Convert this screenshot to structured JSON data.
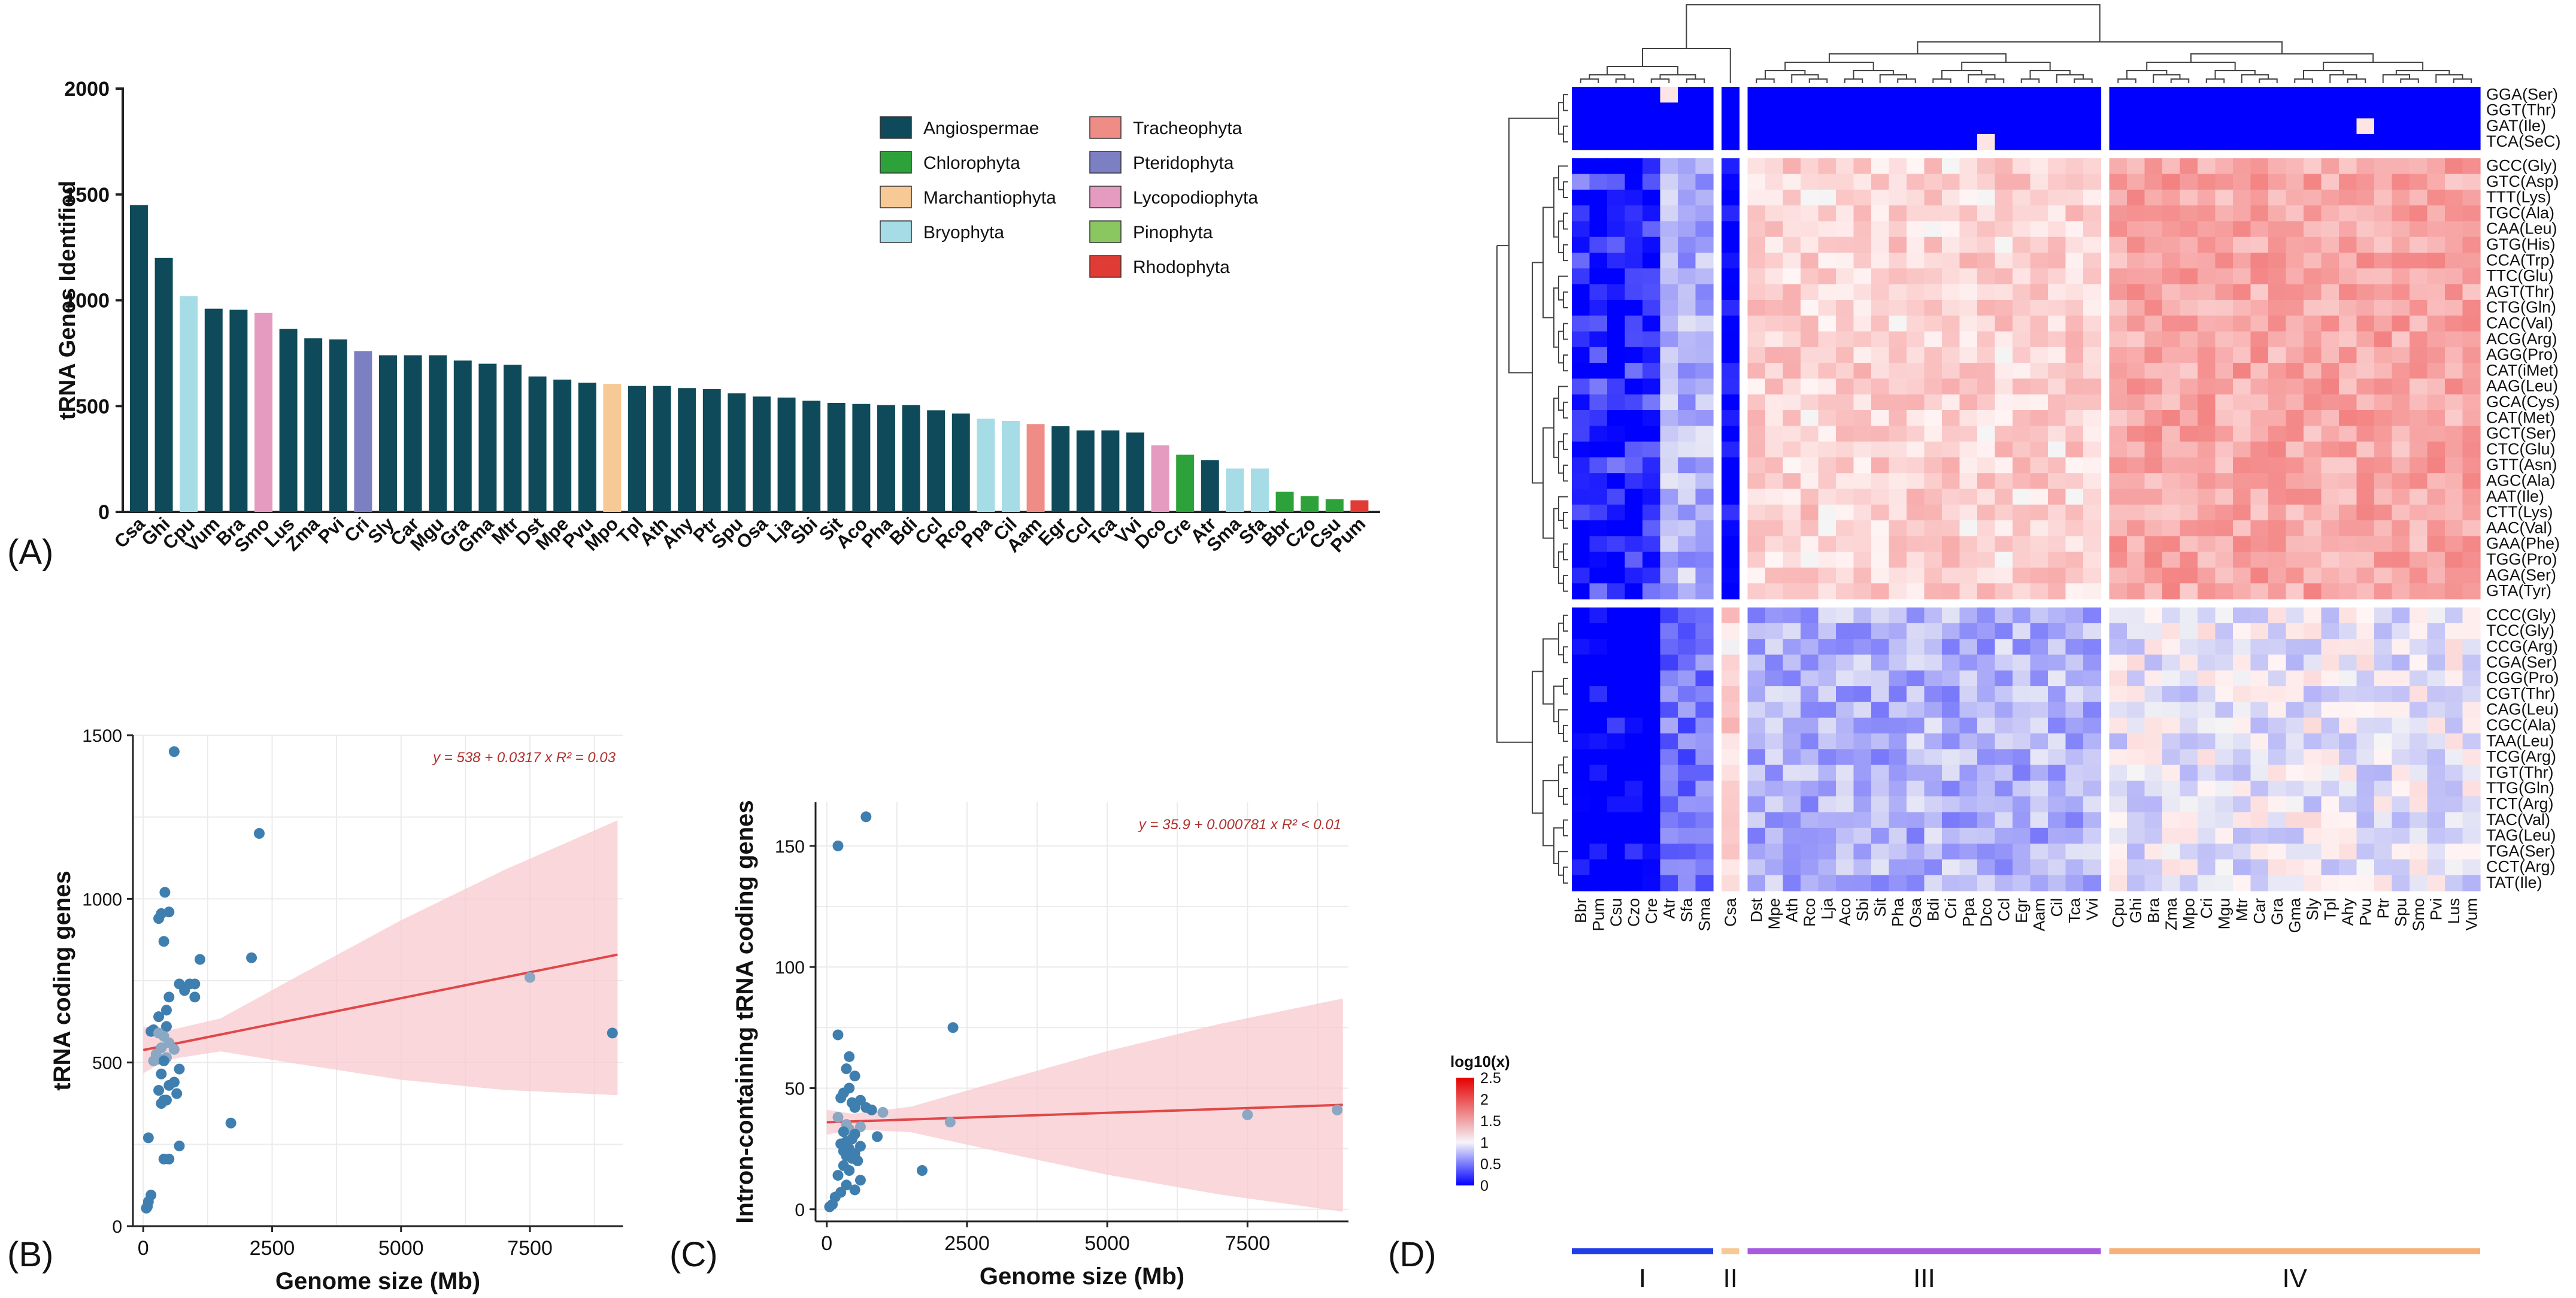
{
  "panel_labels": {
    "A": "(A)",
    "B": "(B)",
    "C": "(C)",
    "D": "(D)"
  },
  "chart_data": [
    {
      "id": "A",
      "type": "bar",
      "ylabel": "tRNA Genes Identified",
      "ylim": [
        0,
        2000
      ],
      "yticks": [
        0,
        500,
        1000,
        1500,
        2000
      ],
      "categories": [
        "Csa",
        "Ghi",
        "Cpu",
        "Vum",
        "Bra",
        "Smo",
        "Lus",
        "Zma",
        "Pvi",
        "Cri",
        "Sly",
        "Car",
        "Mgu",
        "Gra",
        "Gma",
        "Mtr",
        "Dst",
        "Mpe",
        "Pvu",
        "Mpo",
        "Tpl",
        "Ath",
        "Ahy",
        "Ptr",
        "Spu",
        "Osa",
        "Lja",
        "Sbi",
        "Sit",
        "Aco",
        "Pha",
        "Bdi",
        "Ccl",
        "Rco",
        "Ppa",
        "Cil",
        "Aam",
        "Egr",
        "Ccl",
        "Tca",
        "Vvi",
        "Dco",
        "Cre",
        "Atr",
        "Sma",
        "Sfa",
        "Bbr",
        "Czo",
        "Csu",
        "Pum"
      ],
      "values": [
        1450,
        1200,
        1020,
        960,
        955,
        940,
        865,
        820,
        815,
        760,
        740,
        740,
        740,
        715,
        700,
        695,
        640,
        625,
        610,
        605,
        595,
        595,
        585,
        580,
        560,
        545,
        540,
        525,
        515,
        510,
        505,
        505,
        480,
        465,
        440,
        430,
        415,
        405,
        385,
        385,
        375,
        315,
        270,
        245,
        205,
        205,
        95,
        75,
        60,
        55
      ],
      "groups": [
        "Angiospermae",
        "Angiospermae",
        "Bryophyta",
        "Angiospermae",
        "Angiospermae",
        "Lycopodiophyta",
        "Angiospermae",
        "Angiospermae",
        "Angiospermae",
        "Pteridophyta",
        "Angiospermae",
        "Angiospermae",
        "Angiospermae",
        "Angiospermae",
        "Angiospermae",
        "Angiospermae",
        "Angiospermae",
        "Angiospermae",
        "Angiospermae",
        "Marchantiophyta",
        "Angiospermae",
        "Angiospermae",
        "Angiospermae",
        "Angiospermae",
        "Angiospermae",
        "Angiospermae",
        "Angiospermae",
        "Angiospermae",
        "Angiospermae",
        "Angiospermae",
        "Angiospermae",
        "Angiospermae",
        "Angiospermae",
        "Angiospermae",
        "Bryophyta",
        "Bryophyta",
        "Tracheophyta",
        "Angiospermae",
        "Angiospermae",
        "Angiospermae",
        "Angiospermae",
        "Lycopodiophyta",
        "Chlorophyta",
        "Angiospermae",
        "Bryophyta",
        "Bryophyta",
        "Chlorophyta",
        "Chlorophyta",
        "Chlorophyta",
        "Rhodophyta"
      ],
      "legend": [
        {
          "name": "Angiospermae",
          "color": "#0e4a5a"
        },
        {
          "name": "Chlorophyta",
          "color": "#2ea23a"
        },
        {
          "name": "Marchantiophyta",
          "color": "#f7c995"
        },
        {
          "name": "Bryophyta",
          "color": "#a6dce6"
        },
        {
          "name": "Tracheophyta",
          "color": "#f08c86"
        },
        {
          "name": "Pteridophyta",
          "color": "#7d7fc3"
        },
        {
          "name": "Lycopodiophyta",
          "color": "#e59ac0"
        },
        {
          "name": "Pinophyta",
          "color": "#8ac760"
        },
        {
          "name": "Rhodophyta",
          "color": "#e03c35"
        }
      ]
    },
    {
      "id": "B",
      "type": "scatter",
      "xlabel": "Genome size (Mb)",
      "ylabel": "tRNA coding genes",
      "xlim": [
        -200,
        9300
      ],
      "ylim": [
        0,
        1500
      ],
      "xticks": [
        0,
        2500,
        5000,
        7500
      ],
      "yticks": [
        0,
        500,
        1000,
        1500
      ],
      "equation": "y = 538 + 0.0317 x   R² = 0.03",
      "fit": {
        "intercept": 538,
        "slope": 0.0317,
        "x_range": [
          0,
          9200
        ],
        "ci_low_at_max": 400,
        "ci_high_at_max": 1240
      },
      "points": [
        [
          600,
          1450
        ],
        [
          2250,
          1200
        ],
        [
          420,
          1020
        ],
        [
          500,
          960
        ],
        [
          350,
          955
        ],
        [
          300,
          940
        ],
        [
          1100,
          815
        ],
        [
          2100,
          820
        ],
        [
          400,
          870
        ],
        [
          700,
          740
        ],
        [
          900,
          740
        ],
        [
          800,
          720
        ],
        [
          1000,
          740
        ],
        [
          1000,
          700
        ],
        [
          7500,
          760
        ],
        [
          9100,
          590
        ],
        [
          500,
          700
        ],
        [
          450,
          660
        ],
        [
          300,
          640
        ],
        [
          450,
          610
        ],
        [
          200,
          600
        ],
        [
          150,
          595
        ],
        [
          300,
          590
        ],
        [
          400,
          580
        ],
        [
          500,
          560
        ],
        [
          350,
          545
        ],
        [
          600,
          540
        ],
        [
          250,
          525
        ],
        [
          450,
          515
        ],
        [
          300,
          510
        ],
        [
          400,
          505
        ],
        [
          200,
          505
        ],
        [
          700,
          480
        ],
        [
          350,
          465
        ],
        [
          600,
          440
        ],
        [
          500,
          430
        ],
        [
          300,
          415
        ],
        [
          650,
          405
        ],
        [
          400,
          385
        ],
        [
          450,
          385
        ],
        [
          350,
          375
        ],
        [
          1700,
          315
        ],
        [
          100,
          270
        ],
        [
          700,
          245
        ],
        [
          500,
          205
        ],
        [
          400,
          205
        ],
        [
          150,
          95
        ],
        [
          100,
          75
        ],
        [
          80,
          60
        ],
        [
          60,
          55
        ]
      ]
    },
    {
      "id": "C",
      "type": "scatter",
      "xlabel": "Genome size (Mb)",
      "ylabel": "Intron-containing tRNA coding genes",
      "xlim": [
        -200,
        9300
      ],
      "ylim": [
        -5,
        168
      ],
      "xticks": [
        0,
        2500,
        5000,
        7500
      ],
      "yticks": [
        0,
        50,
        100,
        150
      ],
      "equation": "y = 35.9 + 0.000781 x   R² < 0.01",
      "fit": {
        "intercept": 35.9,
        "slope": 0.000781,
        "x_range": [
          0,
          9200
        ],
        "ci_low_at_max": -1,
        "ci_high_at_max": 87
      },
      "points": [
        [
          700,
          162
        ],
        [
          200,
          150
        ],
        [
          2250,
          75
        ],
        [
          200,
          72
        ],
        [
          400,
          63
        ],
        [
          350,
          58
        ],
        [
          500,
          55
        ],
        [
          400,
          50
        ],
        [
          300,
          48
        ],
        [
          250,
          46
        ],
        [
          600,
          45
        ],
        [
          450,
          44
        ],
        [
          500,
          42
        ],
        [
          700,
          42
        ],
        [
          1000,
          40
        ],
        [
          800,
          41
        ],
        [
          9100,
          41
        ],
        [
          7500,
          39
        ],
        [
          2200,
          36
        ],
        [
          200,
          38
        ],
        [
          350,
          35
        ],
        [
          600,
          34
        ],
        [
          400,
          33
        ],
        [
          300,
          32
        ],
        [
          500,
          31
        ],
        [
          900,
          30
        ],
        [
          450,
          29
        ],
        [
          350,
          28
        ],
        [
          250,
          27
        ],
        [
          600,
          26
        ],
        [
          400,
          25
        ],
        [
          300,
          24
        ],
        [
          500,
          23
        ],
        [
          350,
          22
        ],
        [
          450,
          21
        ],
        [
          550,
          20
        ],
        [
          1700,
          16
        ],
        [
          300,
          18
        ],
        [
          400,
          16
        ],
        [
          200,
          14
        ],
        [
          600,
          12
        ],
        [
          350,
          10
        ],
        [
          500,
          8
        ],
        [
          250,
          7
        ],
        [
          150,
          5
        ],
        [
          100,
          2
        ],
        [
          50,
          1
        ]
      ]
    },
    {
      "id": "D",
      "type": "heatmap",
      "legend_title": "log10(x)",
      "legend_ticks": [
        "0",
        "0.5",
        "1",
        "1.5",
        "2",
        "2.5"
      ],
      "columns": [
        "Bbr",
        "Pum",
        "Csu",
        "Czo",
        "Cre",
        "Atr",
        "Sfa",
        "Sma",
        "Csa",
        "Dst",
        "Mpe",
        "Ath",
        "Rco",
        "Lja",
        "Aco",
        "Sbi",
        "Sit",
        "Pha",
        "Osa",
        "Bdi",
        "Cri",
        "Ppa",
        "Dco",
        "Ccl",
        "Egr",
        "Aam",
        "Cil",
        "Tca",
        "Vvi",
        "Cpu",
        "Ghi",
        "Bra",
        "Zma",
        "Mpo",
        "Cri",
        "Mgu",
        "Mtr",
        "Car",
        "Gra",
        "Gma",
        "Sly",
        "Tpl",
        "Ahy",
        "Pvu",
        "Ptr",
        "Spu",
        "Smo",
        "Pvi",
        "Lus",
        "Vum"
      ],
      "rows": [
        "GGA(Ser)",
        "GGT(Thr)",
        "GAT(Ile)",
        "TCA(SeC)",
        "GCC(Gly)",
        "GTC(Asp)",
        "TTT(Lys)",
        "TGC(Ala)",
        "CAA(Leu)",
        "GTG(His)",
        "CCA(Trp)",
        "TTC(Glu)",
        "AGT(Thr)",
        "CTG(Gln)",
        "CAC(Val)",
        "ACG(Arg)",
        "AGG(Pro)",
        "CAT(iMet)",
        "AAG(Leu)",
        "GCA(Cys)",
        "CAT(Met)",
        "GCT(Ser)",
        "CTC(Glu)",
        "GTT(Asn)",
        "AGC(Ala)",
        "AAT(Ile)",
        "CTT(Lys)",
        "AAC(Val)",
        "GAA(Phe)",
        "TGG(Pro)",
        "AGA(Ser)",
        "GTA(Tyr)",
        "CCC(Gly)",
        "TCC(Gly)",
        "CCG(Arg)",
        "CGA(Ser)",
        "CGG(Pro)",
        "CGT(Thr)",
        "CAG(Leu)",
        "CGC(Ala)",
        "TAA(Leu)",
        "TCG(Arg)",
        "TGT(Thr)",
        "TTG(Gln)",
        "TCT(Arg)",
        "TAC(Val)",
        "TAG(Leu)",
        "TGA(Ser)",
        "CCT(Arg)",
        "TAT(Ile)"
      ],
      "column_groups": [
        {
          "label": "I",
          "count": 8,
          "color": "#1f3ee6"
        },
        {
          "label": "II",
          "count": 1,
          "color": "#f7c995"
        },
        {
          "label": "III",
          "count": 20,
          "color": "#a65be0"
        },
        {
          "label": "IV",
          "count": 21,
          "color": "#f8b07a"
        }
      ],
      "row_group_sizes": [
        4,
        28,
        18
      ],
      "group_means": [
        [
          0.0,
          0.0,
          0.0,
          0.0
        ],
        [
          0.38,
          0.0,
          1.22,
          1.48
        ],
        [
          0.12,
          1.2,
          0.72,
          0.95
        ]
      ]
    }
  ]
}
